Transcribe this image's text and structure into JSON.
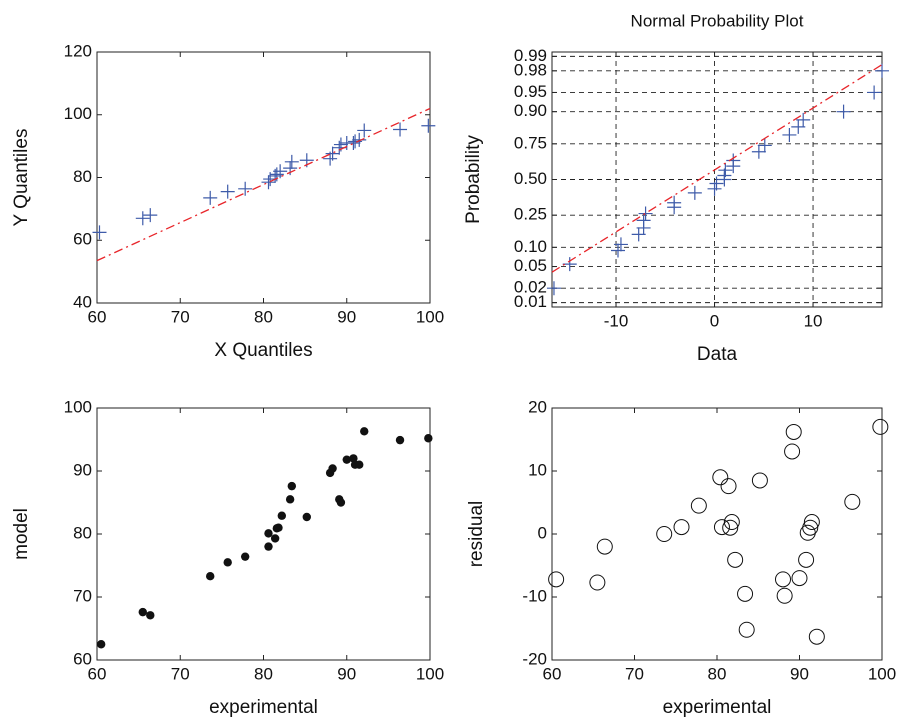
{
  "chart_data": [
    {
      "type": "scatter",
      "xlabel": "X Quantiles",
      "ylabel": "Y Quantiles",
      "xlim": [
        60,
        100
      ],
      "xticks": [
        60,
        70,
        80,
        90,
        100
      ],
      "ylim": [
        40,
        120
      ],
      "yticks": [
        40,
        60,
        80,
        100,
        120
      ],
      "grid": false,
      "series": [
        {
          "style": "plus",
          "color": "#3e5ba9",
          "x": [
            60.3,
            65.5,
            66.4,
            73.6,
            75.7,
            77.8,
            80.6,
            80.8,
            81.4,
            81.6,
            82,
            83.2,
            83.4,
            85.2,
            88,
            88.3,
            89.1,
            89.3,
            90,
            90.8,
            91,
            91.5,
            92.1,
            96.4,
            99.8
          ],
          "values": [
            62.5,
            67,
            68,
            73.5,
            75.5,
            76.4,
            78.5,
            79.5,
            80.5,
            81,
            82,
            83,
            85,
            85.5,
            86,
            87.6,
            89.5,
            90.5,
            91,
            91,
            91.5,
            92,
            95,
            95.3,
            96.5
          ]
        },
        {
          "style": "dash-line",
          "color": "#e8252a",
          "x": [
            60,
            100
          ],
          "values": [
            53.5,
            102
          ]
        }
      ]
    },
    {
      "type": "scatter",
      "title": "Normal Probability Plot",
      "xlabel": "Data",
      "ylabel": "Probability",
      "yscale": "normal",
      "xlim": [
        -16.5,
        17
      ],
      "xticks": [
        -10,
        0,
        10
      ],
      "ylim": [
        0.008,
        0.992
      ],
      "yticks": [
        0.01,
        0.02,
        0.05,
        {
          "value": 0.1,
          "label": "0.10"
        },
        0.25,
        {
          "value": 0.5,
          "label": "0.50"
        },
        0.75,
        {
          "value": 0.9,
          "label": "0.90"
        },
        0.95,
        0.98,
        0.99
      ],
      "grid": true,
      "series": [
        {
          "style": "plus",
          "color": "#3e5ba9",
          "x": [
            -16.3,
            -14.7,
            -9.8,
            -9.5,
            -7.7,
            -7.2,
            -7.2,
            -7,
            -4.1,
            -4.1,
            -2,
            0,
            0.2,
            1,
            1,
            1.1,
            1.9,
            1.9,
            4.5,
            5.1,
            7.6,
            8.5,
            9,
            13.1,
            16.2,
            17
          ],
          "values": [
            0.02,
            0.055,
            0.09,
            0.11,
            0.15,
            0.18,
            0.22,
            0.26,
            0.3,
            0.33,
            0.4,
            0.43,
            0.47,
            0.5,
            0.53,
            0.57,
            0.6,
            0.64,
            0.7,
            0.74,
            0.8,
            0.84,
            0.87,
            0.9,
            0.95,
            0.98
          ]
        },
        {
          "style": "dash-line",
          "color": "#e8252a",
          "x": [
            -16.5,
            17
          ],
          "values": [
            0.04,
            0.985
          ]
        }
      ]
    },
    {
      "type": "scatter",
      "xlabel": "experimental",
      "ylabel": "model",
      "xlim": [
        60,
        100
      ],
      "xticks": [
        60,
        70,
        80,
        90,
        100
      ],
      "ylim": [
        60,
        100
      ],
      "yticks": [
        60,
        70,
        80,
        90,
        100
      ],
      "grid": false,
      "series": [
        {
          "style": "dot",
          "color": "#111111",
          "x": [
            60.5,
            65.5,
            66.4,
            73.6,
            75.7,
            77.8,
            80.6,
            80.6,
            81.4,
            81.6,
            81.8,
            82.2,
            83.2,
            83.4,
            85.2,
            88,
            88.3,
            89.1,
            89.3,
            90,
            90.8,
            91,
            91.5,
            92.1,
            96.4,
            99.8
          ],
          "values": [
            62.5,
            67.6,
            67.1,
            73.3,
            75.5,
            76.4,
            78,
            80.1,
            79.3,
            80.9,
            81,
            82.9,
            85.5,
            87.6,
            82.7,
            89.7,
            90.4,
            85.5,
            85,
            91.8,
            92,
            91,
            91,
            96.3,
            94.9,
            95.2
          ]
        }
      ]
    },
    {
      "type": "scatter",
      "xlabel": "experimental",
      "ylabel": "residual",
      "xlim": [
        60,
        100
      ],
      "xticks": [
        60,
        70,
        80,
        90,
        100
      ],
      "ylim": [
        -20,
        20
      ],
      "yticks": [
        -20,
        -10,
        0,
        10,
        20
      ],
      "grid": false,
      "series": [
        {
          "style": "circle",
          "color": "#111111",
          "x": [
            60.5,
            65.5,
            66.4,
            73.6,
            75.7,
            77.8,
            80.4,
            80.6,
            81.4,
            81.6,
            81.8,
            82.2,
            83.4,
            83.6,
            85.2,
            88,
            88.2,
            89.1,
            89.3,
            90,
            90.8,
            91,
            91.3,
            91.5,
            92.1,
            96.4,
            99.8
          ],
          "values": [
            -7.2,
            -7.7,
            -2,
            0,
            1.1,
            4.5,
            9,
            1.1,
            7.6,
            1,
            1.9,
            -4.1,
            -9.5,
            -15.2,
            8.5,
            -7.2,
            -9.8,
            13.1,
            16.2,
            -7,
            -4.1,
            0.2,
            1,
            1.9,
            -16.3,
            5.1,
            17
          ]
        }
      ]
    }
  ]
}
